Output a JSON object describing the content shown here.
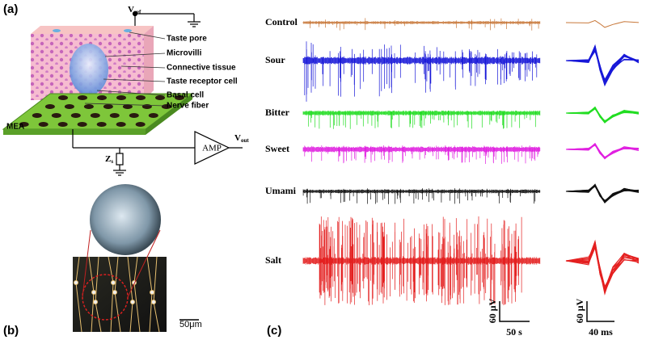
{
  "panel_a": {
    "label": "(a)",
    "vref": {
      "main": "V",
      "sub": "ref"
    },
    "callouts": [
      "Taste pore",
      "Microvilli",
      "Connective tissue",
      "Taste receptor cell",
      "Basal cell",
      "Nerve fiber"
    ],
    "mea": "MEA",
    "amp": "AMP",
    "vout": {
      "main": "V",
      "sub": "out"
    },
    "zs": {
      "main": "Z",
      "sub": "s"
    }
  },
  "panel_b": {
    "label": "(b)",
    "scale": "50μm"
  },
  "panel_c": {
    "label": "(c)",
    "traces": [
      {
        "name": "Control",
        "color": "#c8783a"
      },
      {
        "name": "Sour",
        "color": "#1818d8"
      },
      {
        "name": "Bitter",
        "color": "#22dd22"
      },
      {
        "name": "Sweet",
        "color": "#e020e0"
      },
      {
        "name": "Umami",
        "color": "#111111"
      },
      {
        "name": "Salt",
        "color": "#e42020"
      }
    ],
    "scale_left": {
      "y": "60 μV",
      "x": "50 s"
    },
    "scale_right": {
      "y": "60 μV",
      "x": "40 ms"
    }
  }
}
